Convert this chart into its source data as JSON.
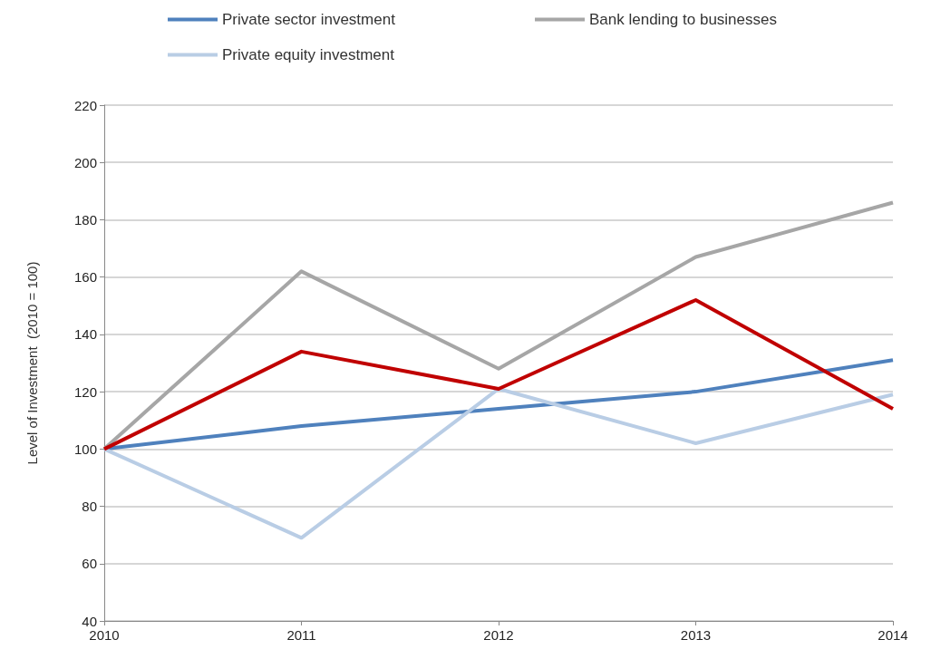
{
  "chart_data": {
    "type": "line",
    "ylabel": "Level of Investment  (2010 = 100)",
    "categories": [
      "2010",
      "2011",
      "2012",
      "2013",
      "2014"
    ],
    "series": [
      {
        "name": "Private sector investment",
        "color": "#4f81bd",
        "values": [
          100,
          108,
          114,
          120,
          131
        ]
      },
      {
        "name": "Bank lending to businesses",
        "color": "#a6a6a6",
        "values": [
          100,
          162,
          128,
          167,
          186
        ]
      },
      {
        "name": "Private equity investment",
        "color": "#b9cde5",
        "values": [
          100,
          69,
          121,
          102,
          119
        ]
      },
      {
        "color": "#c00000",
        "values": [
          100,
          134,
          121,
          152,
          114
        ]
      }
    ],
    "ylim": [
      40,
      220
    ],
    "yticks": [
      40,
      60,
      80,
      100,
      120,
      140,
      160,
      180,
      200,
      220
    ],
    "grid": "y",
    "legend": "top",
    "marker": "none",
    "line_style": "solid"
  }
}
